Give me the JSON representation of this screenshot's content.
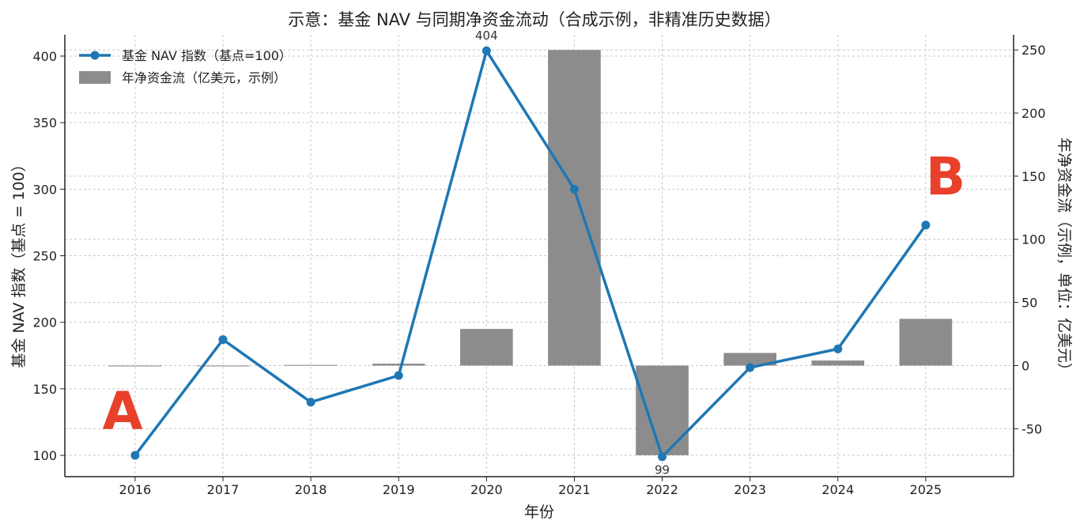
{
  "chart_data": {
    "type": "bar+line",
    "title": "示意：基金 NAV 与同期净资金流动（合成示例，非精准历史数据）",
    "xlabel": "年份",
    "ylabel_left": "基金 NAV 指数（基点 = 100）",
    "ylabel_right": "年净资金流（示例，单位：亿美元）",
    "categories": [
      "2016",
      "2017",
      "2018",
      "2019",
      "2020",
      "2021",
      "2022",
      "2023",
      "2024",
      "2025"
    ],
    "left_axis": {
      "ylim": [
        84,
        416
      ],
      "ticks": [
        100,
        150,
        200,
        250,
        300,
        350,
        400
      ]
    },
    "right_axis": {
      "ylim": [
        -88,
        262
      ],
      "ticks": [
        -50,
        0,
        50,
        100,
        150,
        200,
        250
      ]
    },
    "series": [
      {
        "name": "基金 NAV 指数（基点=100）",
        "type": "line",
        "axis": "left",
        "color": "#1f77b4",
        "values": [
          100,
          187,
          140,
          160,
          404,
          300,
          99,
          166,
          180,
          273
        ]
      },
      {
        "name": "年净资金流（亿美元，示例）",
        "type": "bar",
        "axis": "right",
        "color": "#8c8c8c",
        "values": [
          0,
          0,
          0.5,
          1.5,
          29,
          250,
          -71,
          10,
          4,
          37
        ]
      }
    ],
    "annotations": [
      {
        "text": "404",
        "category": "2020",
        "value": 404,
        "position": "above"
      },
      {
        "text": "99",
        "category": "2022",
        "value": 99,
        "position": "below"
      }
    ],
    "markers": [
      {
        "text": "A",
        "color": "#e8402a"
      },
      {
        "text": "B",
        "color": "#e8402a"
      }
    ],
    "grid": true,
    "legend_position": "top-left"
  }
}
